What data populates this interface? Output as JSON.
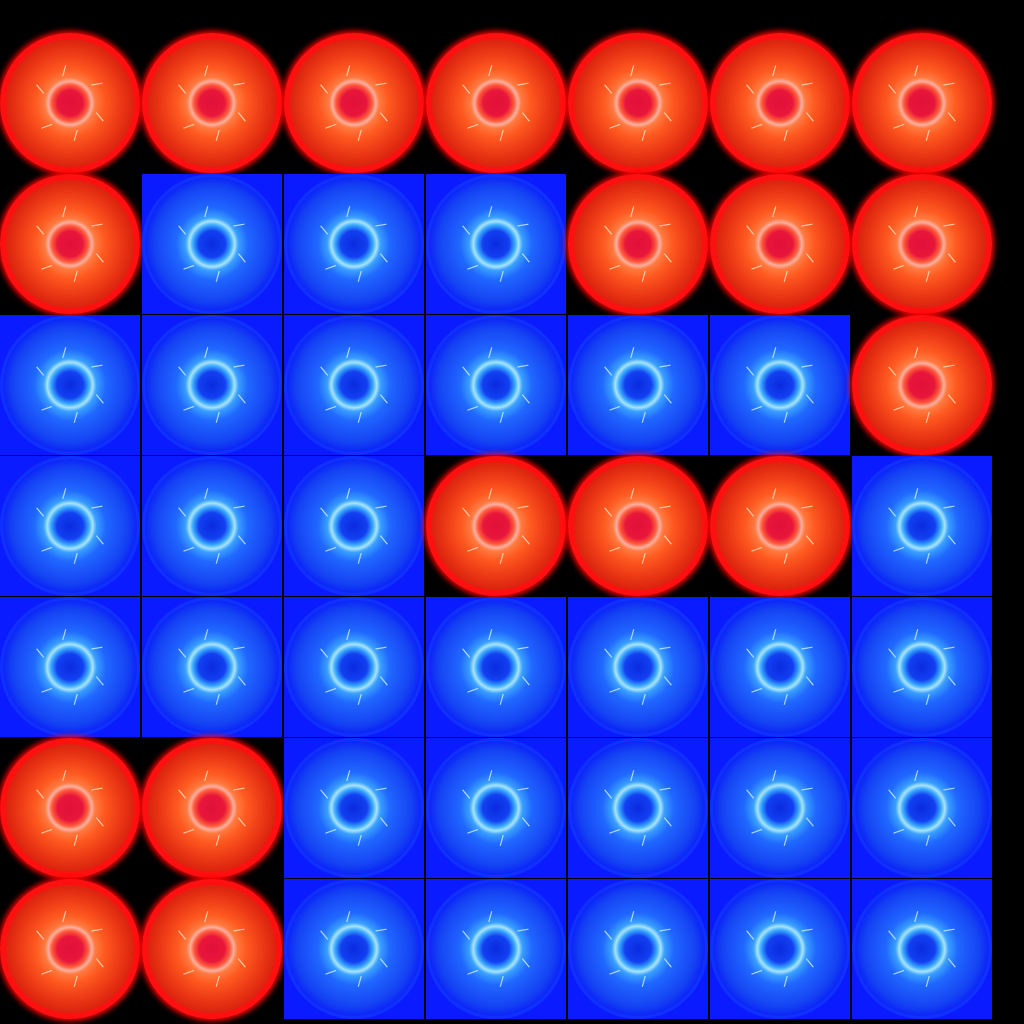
{
  "board": {
    "rows": [
      [
        "red",
        "red",
        "red",
        "red",
        "red",
        "red",
        "red"
      ],
      [
        "red",
        "blue",
        "blue",
        "blue",
        "red",
        "red",
        "red"
      ],
      [
        "blue",
        "blue",
        "blue",
        "blue",
        "blue",
        "blue",
        "red"
      ],
      [
        "blue",
        "blue",
        "blue",
        "red",
        "red",
        "red",
        "blue"
      ],
      [
        "blue",
        "blue",
        "blue",
        "blue",
        "blue",
        "blue",
        "blue"
      ],
      [
        "red",
        "red",
        "blue",
        "blue",
        "blue",
        "blue",
        "blue"
      ],
      [
        "red",
        "red",
        "blue",
        "blue",
        "blue",
        "blue",
        "blue"
      ]
    ]
  },
  "colors": {
    "background": "#000000",
    "red_orb": "#ff1010",
    "blue_tile": "#0a1cff",
    "blue_ring": "#a8e4ff",
    "red_ring": "#ffb0a0"
  },
  "icons": {
    "red": "red-orb-icon",
    "blue": "blue-orb-icon"
  }
}
